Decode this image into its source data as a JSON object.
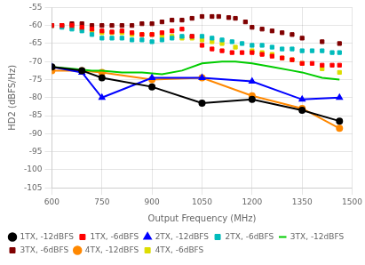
{
  "chart_data": {
    "type": "line",
    "x_label": "Output Frequency (MHz)",
    "y_label": "HD2 (dBFS/Hz)",
    "xlim": [
      600,
      1500
    ],
    "ylim": [
      -105,
      -55
    ],
    "xticks": [
      600,
      750,
      900,
      1050,
      1200,
      1350,
      1500
    ],
    "yticks": [
      -105,
      -100,
      -95,
      -90,
      -85,
      -80,
      -75,
      -70,
      -65,
      -60,
      -55
    ],
    "grid": true,
    "legend": "lower left",
    "series": [
      {
        "name": "1TX, -12dBFS",
        "color": "#000000",
        "marker": "circle",
        "line_style": "solid",
        "x": [
          600,
          690,
          750,
          900,
          1050,
          1200,
          1350,
          1462
        ],
        "values": [
          -71.5,
          -72.5,
          -74.5,
          -77.0,
          -81.5,
          -80.5,
          -83.5,
          -86.5
        ]
      },
      {
        "name": "1TX, -6dBFS",
        "color": "#ff0000",
        "marker": "square",
        "line_style": "none",
        "x": [
          600,
          630,
          660,
          690,
          720,
          750,
          780,
          810,
          840,
          870,
          900,
          930,
          960,
          990,
          1020,
          1050,
          1080,
          1110,
          1140,
          1170,
          1200,
          1230,
          1260,
          1290,
          1320,
          1350,
          1380,
          1410,
          1440,
          1462
        ],
        "values": [
          -60.0,
          -60.0,
          -60.0,
          -60.5,
          -61.0,
          -61.5,
          -61.8,
          -61.5,
          -62.0,
          -62.5,
          -62.5,
          -62.0,
          -61.5,
          -61.0,
          -63.0,
          -65.5,
          -66.5,
          -67.0,
          -67.5,
          -67.5,
          -67.5,
          -68.0,
          -68.5,
          -69.0,
          -69.5,
          -70.5,
          -70.5,
          -71.0,
          -71.0,
          -71.0
        ]
      },
      {
        "name": "2TX, -12dBFS",
        "color": "#0000ff",
        "marker": "triangle",
        "line_style": "solid",
        "x": [
          600,
          690,
          750,
          900,
          1050,
          1200,
          1350,
          1462
        ],
        "values": [
          -71.5,
          -73.0,
          -80.0,
          -74.5,
          -74.5,
          -75.5,
          -80.5,
          -80.0
        ]
      },
      {
        "name": "2TX, -6dBFS",
        "color": "#00bbbb",
        "marker": "square",
        "line_style": "none",
        "x": [
          600,
          630,
          660,
          690,
          720,
          750,
          780,
          810,
          840,
          870,
          900,
          930,
          960,
          990,
          1020,
          1050,
          1080,
          1110,
          1140,
          1170,
          1200,
          1230,
          1260,
          1290,
          1320,
          1350,
          1380,
          1410,
          1440,
          1462
        ],
        "values": [
          -60.0,
          -60.5,
          -61.0,
          -61.5,
          -62.5,
          -63.5,
          -63.5,
          -63.5,
          -64.0,
          -64.0,
          -64.5,
          -64.0,
          -63.5,
          -63.0,
          -63.0,
          -63.0,
          -63.5,
          -64.0,
          -64.5,
          -65.0,
          -65.5,
          -65.5,
          -66.0,
          -66.5,
          -66.5,
          -67.0,
          -67.0,
          -67.0,
          -67.5,
          -67.5
        ]
      },
      {
        "name": "3TX, -12dBFS",
        "color": "#00cc00",
        "marker": "none",
        "line_style": "solid",
        "x": [
          600,
          660,
          720,
          750,
          810,
          870,
          930,
          990,
          1050,
          1110,
          1150,
          1200,
          1260,
          1320,
          1350,
          1410,
          1462
        ],
        "values": [
          -71.5,
          -72.0,
          -72.5,
          -72.5,
          -73.0,
          -73.0,
          -73.5,
          -72.5,
          -70.5,
          -70.0,
          -70.0,
          -70.5,
          -71.5,
          -72.5,
          -73.0,
          -74.5,
          -75.0
        ]
      },
      {
        "name": "3TX, -6dBFS",
        "color": "#800000",
        "marker": "square",
        "line_style": "none",
        "x": [
          600,
          630,
          660,
          690,
          720,
          750,
          780,
          810,
          840,
          870,
          900,
          930,
          960,
          990,
          1020,
          1050,
          1080,
          1100,
          1130,
          1150,
          1180,
          1200,
          1230,
          1260,
          1290,
          1320,
          1350,
          1410,
          1462
        ],
        "values": [
          -60.0,
          -60.0,
          -59.5,
          -59.5,
          -60.0,
          -60.0,
          -60.0,
          -60.0,
          -60.0,
          -59.5,
          -59.5,
          -59.0,
          -58.5,
          -58.5,
          -58.0,
          -57.5,
          -57.5,
          -57.5,
          -57.8,
          -58.0,
          -59.0,
          -60.5,
          -61.0,
          -61.5,
          -62.0,
          -62.5,
          -63.5,
          -64.5,
          -65.0
        ]
      },
      {
        "name": "4TX, -12dBFS",
        "color": "#ff8800",
        "marker": "circle",
        "line_style": "solid",
        "x": [
          600,
          690,
          750,
          900,
          1050,
          1200,
          1350,
          1462
        ],
        "values": [
          -72.5,
          -72.5,
          -73.0,
          -75.0,
          -74.5,
          -79.5,
          -83.0,
          -88.5
        ]
      },
      {
        "name": "4TX, -6dBFS",
        "color": "#dddd00",
        "marker": "square",
        "line_style": "none",
        "x": [
          600,
          630,
          660,
          690,
          720,
          750,
          780,
          810,
          840,
          870,
          900,
          930,
          960,
          990,
          1020,
          1050,
          1080,
          1110,
          1150,
          1200,
          1230,
          1260,
          1290,
          1320,
          1350,
          1410,
          1462
        ],
        "values": [
          -60.0,
          -60.0,
          -60.5,
          -61.0,
          -61.5,
          -62.0,
          -62.0,
          -62.0,
          -62.5,
          -62.5,
          -62.5,
          -63.0,
          -63.0,
          -63.5,
          -63.5,
          -64.0,
          -64.5,
          -65.0,
          -66.0,
          -67.0,
          -67.5,
          -68.0,
          -69.0,
          -69.5,
          -70.5,
          -72.0,
          -73.0
        ]
      }
    ]
  }
}
